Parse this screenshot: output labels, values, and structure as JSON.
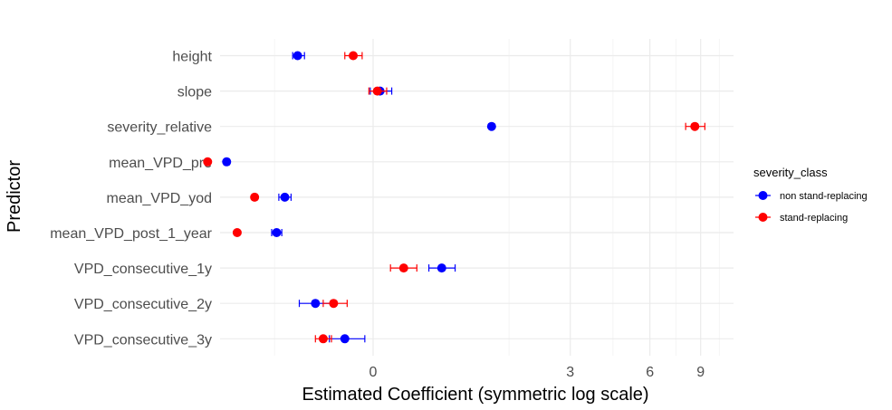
{
  "chart_data": {
    "type": "scatter",
    "title": "",
    "xlabel": "Estimated Coefficient (symmetric log scale)",
    "ylabel": "Predictor",
    "x_scale": "symlog",
    "xlim": [
      -2.5,
      12
    ],
    "x_ticks": [
      0,
      3,
      6,
      9
    ],
    "grid": true,
    "legend_position": "right",
    "legend_title": "severity_class",
    "categories": [
      "height",
      "slope",
      "severity_relative",
      "mean_VPD_pre",
      "mean_VPD_yod",
      "mean_VPD_post_1_year",
      "VPD_consecutive_1y",
      "VPD_consecutive_2y",
      "VPD_consecutive_3y"
    ],
    "series": [
      {
        "name": "non stand-replacing",
        "color": "#0000ff",
        "points": [
          {
            "estimate": -0.7,
            "lower": -0.76,
            "upper": -0.62
          },
          {
            "estimate": 0.05,
            "lower": -0.02,
            "upper": 0.14
          },
          {
            "estimate": 1.3,
            "lower": 1.28,
            "upper": 1.32
          },
          {
            "estimate": -1.8,
            "lower": -1.85,
            "upper": -1.75
          },
          {
            "estimate": -0.86,
            "lower": -0.94,
            "upper": -0.78
          },
          {
            "estimate": -0.97,
            "lower": -1.04,
            "upper": -0.9
          },
          {
            "estimate": 0.62,
            "lower": 0.48,
            "upper": 0.78
          },
          {
            "estimate": -0.5,
            "lower": -0.68,
            "upper": -0.34
          },
          {
            "estimate": -0.22,
            "lower": -0.36,
            "upper": -0.06
          }
        ]
      },
      {
        "name": "stand-replacing",
        "color": "#ff0000",
        "points": [
          {
            "estimate": -0.15,
            "lower": -0.22,
            "upper": -0.08
          },
          {
            "estimate": 0.03,
            "lower": -0.03,
            "upper": 0.1
          },
          {
            "estimate": 8.6,
            "lower": 8.0,
            "upper": 9.3
          },
          {
            "estimate": -2.2,
            "lower": -2.24,
            "upper": -2.16
          },
          {
            "estimate": -1.3,
            "lower": -1.34,
            "upper": -1.26
          },
          {
            "estimate": -1.6,
            "lower": -1.64,
            "upper": -1.56
          },
          {
            "estimate": 0.24,
            "lower": 0.13,
            "upper": 0.36
          },
          {
            "estimate": -0.32,
            "lower": -0.42,
            "upper": -0.2
          },
          {
            "estimate": -0.42,
            "lower": -0.5,
            "upper": -0.34
          }
        ]
      }
    ]
  }
}
